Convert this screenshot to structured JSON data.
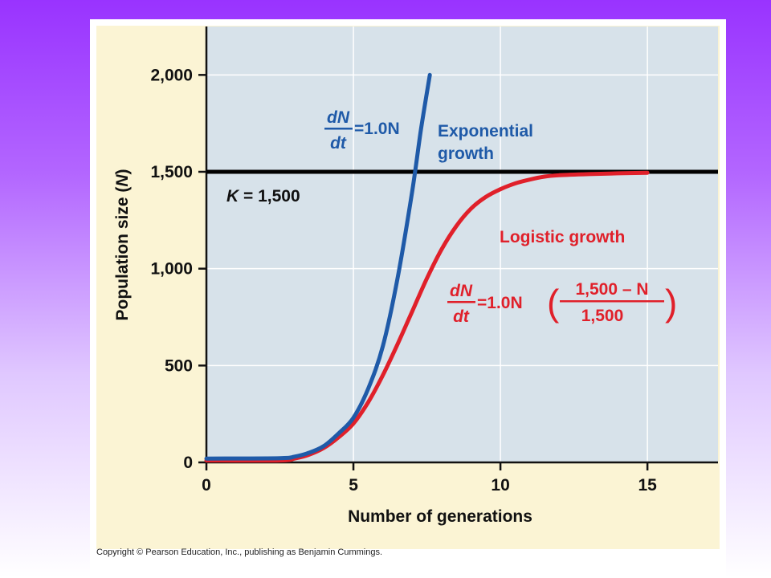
{
  "copyright": "Copyright © Pearson Education, Inc., publishing as Benjamin Cummings.",
  "chart_data": {
    "type": "line",
    "xlabel": "Number of generations",
    "ylabel_main": "Population size (",
    "ylabel_var": "N",
    "ylabel_end": ")",
    "xlim": [
      0,
      17.4
    ],
    "ylim": [
      0,
      2250
    ],
    "x_ticks": [
      0,
      5,
      10,
      15
    ],
    "x_tick_labels": [
      "0",
      "5",
      "10",
      "15"
    ],
    "y_ticks": [
      0,
      500,
      1000,
      1500,
      2000
    ],
    "y_tick_labels": [
      "0",
      "500",
      "1,000",
      "1,500",
      "2,000"
    ],
    "grid": true,
    "carrying_capacity": {
      "value": 1500,
      "label_var": "K",
      "label_rest": " = 1,500"
    },
    "series": [
      {
        "name": "Exponential growth",
        "label_line1": "Exponential",
        "label_line2": "growth",
        "equation": {
          "num": "dN",
          "den": "dt",
          "rhs": "=1.0N"
        },
        "color": "#1f5aa8",
        "x": [
          0,
          2.5,
          3.0,
          3.5,
          4.0,
          4.5,
          5.0,
          5.5,
          6.0,
          6.5,
          7.0,
          7.3,
          7.6
        ],
        "y": [
          20,
          22,
          30,
          50,
          85,
          150,
          230,
          380,
          600,
          950,
          1400,
          1720,
          2000
        ]
      },
      {
        "name": "Logistic growth",
        "label": "Logistic growth",
        "equation": {
          "num": "dN",
          "den": "dt",
          "rhs": "=1.0N",
          "frac_num": "1,500 – N",
          "frac_den": "1,500",
          "lparen": "(",
          "rparen": ")"
        },
        "color": "#e0202a",
        "x": [
          0,
          2.5,
          3.0,
          3.5,
          4.0,
          4.5,
          5.0,
          5.5,
          6.0,
          6.5,
          7.0,
          7.5,
          8.0,
          8.5,
          9.0,
          9.5,
          10.0,
          10.5,
          11.0,
          11.5,
          12.0,
          13.0,
          14.0,
          15.0
        ],
        "y": [
          10,
          10,
          20,
          40,
          75,
          130,
          200,
          310,
          450,
          610,
          780,
          950,
          1100,
          1220,
          1310,
          1370,
          1410,
          1440,
          1460,
          1475,
          1482,
          1488,
          1492,
          1495
        ]
      }
    ]
  }
}
